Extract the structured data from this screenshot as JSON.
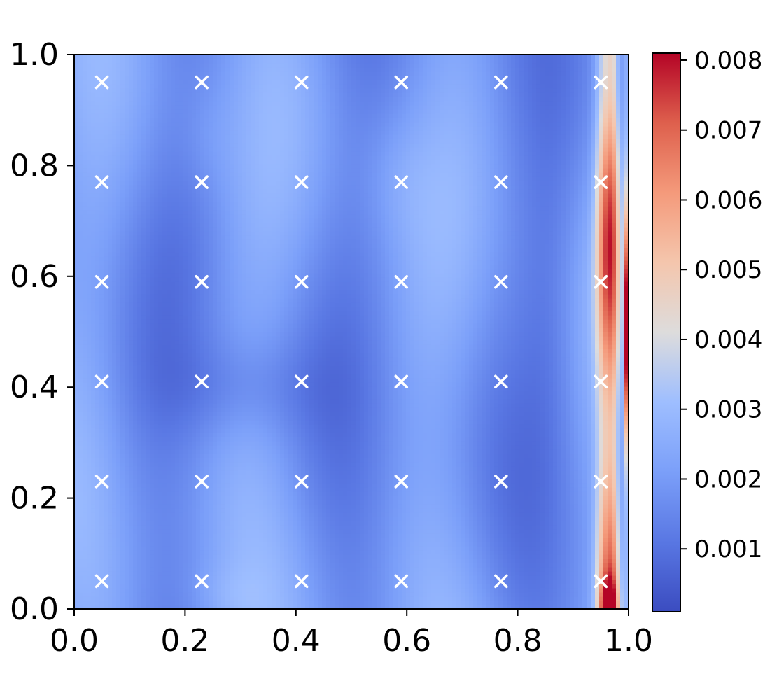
{
  "chart_data": {
    "type": "heatmap",
    "title": "",
    "xlabel": "",
    "ylabel": "",
    "xlim": [
      0.0,
      1.0
    ],
    "ylim": [
      0.0,
      1.0
    ],
    "x_ticks": [
      "0.0",
      "0.2",
      "0.4",
      "0.6",
      "0.8",
      "1.0"
    ],
    "y_ticks": [
      "0.0",
      "0.2",
      "0.4",
      "0.6",
      "0.8",
      "1.0"
    ],
    "x_tick_values": [
      0.0,
      0.2,
      0.4,
      0.6,
      0.8,
      1.0
    ],
    "y_tick_values": [
      0.0,
      0.2,
      0.4,
      0.6,
      0.8,
      1.0
    ],
    "colormap": "coolwarm",
    "colorbar": {
      "vmin": 0.0001,
      "vmax": 0.0081,
      "ticks": [
        "0.001",
        "0.002",
        "0.003",
        "0.004",
        "0.005",
        "0.006",
        "0.007",
        "0.008"
      ],
      "tick_values": [
        0.001,
        0.002,
        0.003,
        0.004,
        0.005,
        0.006,
        0.007,
        0.008
      ],
      "position": "right"
    },
    "markers": {
      "symbol": "x",
      "color": "#ffffff",
      "x": [
        0.05,
        0.23,
        0.41,
        0.59,
        0.77,
        0.95
      ],
      "y": [
        0.05,
        0.23,
        0.41,
        0.59,
        0.77,
        0.95
      ]
    },
    "grid": false,
    "legend": "none"
  }
}
